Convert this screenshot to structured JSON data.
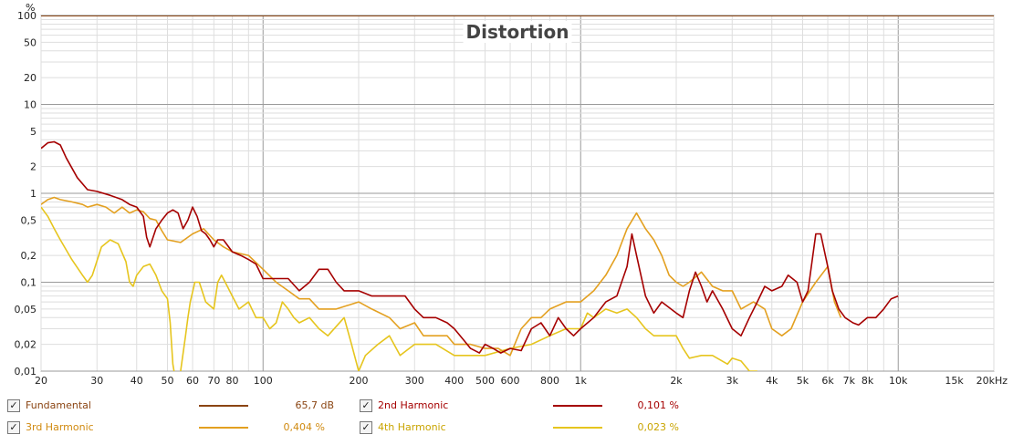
{
  "chart_data": {
    "type": "line",
    "title": "Distortion",
    "ylabel": "%",
    "xunit": "kHz",
    "xscale": "log",
    "yscale": "log",
    "xlim": [
      20,
      20000
    ],
    "ylim": [
      0.01,
      100
    ],
    "xticks": [
      {
        "v": 20,
        "t": "20"
      },
      {
        "v": 30,
        "t": "30"
      },
      {
        "v": 40,
        "t": "40"
      },
      {
        "v": 50,
        "t": "50"
      },
      {
        "v": 60,
        "t": "60"
      },
      {
        "v": 70,
        "t": "70"
      },
      {
        "v": 80,
        "t": "80"
      },
      {
        "v": 100,
        "t": "100"
      },
      {
        "v": 200,
        "t": "200"
      },
      {
        "v": 300,
        "t": "300"
      },
      {
        "v": 400,
        "t": "400"
      },
      {
        "v": 500,
        "t": "500"
      },
      {
        "v": 600,
        "t": "600"
      },
      {
        "v": 800,
        "t": "800"
      },
      {
        "v": 1000,
        "t": "1k"
      },
      {
        "v": 2000,
        "t": "2k"
      },
      {
        "v": 3000,
        "t": "3k"
      },
      {
        "v": 4000,
        "t": "4k"
      },
      {
        "v": 5000,
        "t": "5k"
      },
      {
        "v": 6000,
        "t": "6k"
      },
      {
        "v": 7000,
        "t": "7k"
      },
      {
        "v": 8000,
        "t": "8k"
      },
      {
        "v": 10000,
        "t": "10k"
      },
      {
        "v": 15000,
        "t": "15k"
      },
      {
        "v": 20000,
        "t": "20kHz"
      }
    ],
    "yticks": [
      {
        "v": 100,
        "t": "100"
      },
      {
        "v": 50,
        "t": "50"
      },
      {
        "v": 20,
        "t": "20"
      },
      {
        "v": 10,
        "t": "10"
      },
      {
        "v": 5,
        "t": "5"
      },
      {
        "v": 2,
        "t": "2"
      },
      {
        "v": 1,
        "t": "1"
      },
      {
        "v": 0.5,
        "t": "0,5"
      },
      {
        "v": 0.2,
        "t": "0,2"
      },
      {
        "v": 0.1,
        "t": "0,1"
      },
      {
        "v": 0.05,
        "t": "0,05"
      },
      {
        "v": 0.02,
        "t": "0,02"
      },
      {
        "v": 0.01,
        "t": "0,01"
      }
    ],
    "series": [
      {
        "name": "Fundamental",
        "color": "#8b4513",
        "value": "65,7 dB",
        "checked": true,
        "points": [
          [
            20,
            100
          ],
          [
            20000,
            100
          ]
        ]
      },
      {
        "name": "2nd Harmonic",
        "color": "#a50000",
        "value": "0,101 %",
        "checked": true,
        "points": [
          [
            20,
            3.2
          ],
          [
            21,
            3.7
          ],
          [
            22,
            3.8
          ],
          [
            23,
            3.5
          ],
          [
            24,
            2.5
          ],
          [
            26,
            1.5
          ],
          [
            28,
            1.1
          ],
          [
            30,
            1.05
          ],
          [
            33,
            0.95
          ],
          [
            36,
            0.85
          ],
          [
            38,
            0.75
          ],
          [
            40,
            0.7
          ],
          [
            42,
            0.55
          ],
          [
            43,
            0.32
          ],
          [
            44,
            0.25
          ],
          [
            46,
            0.4
          ],
          [
            48,
            0.5
          ],
          [
            50,
            0.6
          ],
          [
            52,
            0.65
          ],
          [
            54,
            0.6
          ],
          [
            56,
            0.4
          ],
          [
            58,
            0.5
          ],
          [
            60,
            0.7
          ],
          [
            62,
            0.55
          ],
          [
            64,
            0.38
          ],
          [
            66,
            0.35
          ],
          [
            68,
            0.3
          ],
          [
            70,
            0.25
          ],
          [
            72,
            0.3
          ],
          [
            75,
            0.3
          ],
          [
            80,
            0.22
          ],
          [
            85,
            0.2
          ],
          [
            90,
            0.18
          ],
          [
            95,
            0.16
          ],
          [
            100,
            0.11
          ],
          [
            110,
            0.11
          ],
          [
            120,
            0.11
          ],
          [
            130,
            0.08
          ],
          [
            140,
            0.1
          ],
          [
            150,
            0.14
          ],
          [
            160,
            0.14
          ],
          [
            170,
            0.1
          ],
          [
            180,
            0.08
          ],
          [
            200,
            0.08
          ],
          [
            220,
            0.07
          ],
          [
            250,
            0.07
          ],
          [
            280,
            0.07
          ],
          [
            300,
            0.05
          ],
          [
            320,
            0.04
          ],
          [
            350,
            0.04
          ],
          [
            380,
            0.035
          ],
          [
            400,
            0.03
          ],
          [
            430,
            0.022
          ],
          [
            450,
            0.018
          ],
          [
            480,
            0.016
          ],
          [
            500,
            0.02
          ],
          [
            530,
            0.018
          ],
          [
            560,
            0.016
          ],
          [
            600,
            0.018
          ],
          [
            650,
            0.017
          ],
          [
            700,
            0.03
          ],
          [
            750,
            0.035
          ],
          [
            800,
            0.025
          ],
          [
            850,
            0.04
          ],
          [
            900,
            0.03
          ],
          [
            950,
            0.025
          ],
          [
            1000,
            0.03
          ],
          [
            1100,
            0.04
          ],
          [
            1200,
            0.06
          ],
          [
            1300,
            0.07
          ],
          [
            1400,
            0.15
          ],
          [
            1450,
            0.35
          ],
          [
            1500,
            0.2
          ],
          [
            1600,
            0.07
          ],
          [
            1700,
            0.045
          ],
          [
            1800,
            0.06
          ],
          [
            2000,
            0.045
          ],
          [
            2100,
            0.04
          ],
          [
            2200,
            0.08
          ],
          [
            2300,
            0.13
          ],
          [
            2400,
            0.09
          ],
          [
            2500,
            0.06
          ],
          [
            2600,
            0.08
          ],
          [
            2800,
            0.05
          ],
          [
            3000,
            0.03
          ],
          [
            3200,
            0.025
          ],
          [
            3400,
            0.04
          ],
          [
            3600,
            0.06
          ],
          [
            3800,
            0.09
          ],
          [
            4000,
            0.08
          ],
          [
            4300,
            0.09
          ],
          [
            4500,
            0.12
          ],
          [
            4800,
            0.1
          ],
          [
            5000,
            0.06
          ],
          [
            5200,
            0.08
          ],
          [
            5500,
            0.35
          ],
          [
            5700,
            0.35
          ],
          [
            6000,
            0.15
          ],
          [
            6200,
            0.08
          ],
          [
            6500,
            0.05
          ],
          [
            6800,
            0.04
          ],
          [
            7200,
            0.035
          ],
          [
            7500,
            0.033
          ],
          [
            8000,
            0.04
          ],
          [
            8500,
            0.04
          ],
          [
            9000,
            0.05
          ],
          [
            9500,
            0.065
          ],
          [
            10000,
            0.07
          ]
        ]
      },
      {
        "name": "3rd Harmonic",
        "color": "#e3a020",
        "value": "0,404 %",
        "checked": true,
        "points": [
          [
            20,
            0.75
          ],
          [
            21,
            0.85
          ],
          [
            22,
            0.9
          ],
          [
            23,
            0.85
          ],
          [
            25,
            0.8
          ],
          [
            27,
            0.75
          ],
          [
            28,
            0.7
          ],
          [
            30,
            0.75
          ],
          [
            32,
            0.7
          ],
          [
            34,
            0.6
          ],
          [
            36,
            0.7
          ],
          [
            38,
            0.6
          ],
          [
            40,
            0.65
          ],
          [
            42,
            0.62
          ],
          [
            44,
            0.52
          ],
          [
            46,
            0.5
          ],
          [
            48,
            0.38
          ],
          [
            50,
            0.3
          ],
          [
            55,
            0.28
          ],
          [
            60,
            0.35
          ],
          [
            65,
            0.4
          ],
          [
            70,
            0.3
          ],
          [
            75,
            0.25
          ],
          [
            80,
            0.22
          ],
          [
            90,
            0.2
          ],
          [
            100,
            0.14
          ],
          [
            110,
            0.1
          ],
          [
            120,
            0.08
          ],
          [
            130,
            0.065
          ],
          [
            140,
            0.065
          ],
          [
            150,
            0.05
          ],
          [
            170,
            0.05
          ],
          [
            200,
            0.06
          ],
          [
            220,
            0.05
          ],
          [
            250,
            0.04
          ],
          [
            270,
            0.03
          ],
          [
            300,
            0.035
          ],
          [
            320,
            0.025
          ],
          [
            350,
            0.025
          ],
          [
            380,
            0.025
          ],
          [
            400,
            0.02
          ],
          [
            430,
            0.02
          ],
          [
            450,
            0.02
          ],
          [
            500,
            0.018
          ],
          [
            550,
            0.018
          ],
          [
            600,
            0.015
          ],
          [
            650,
            0.03
          ],
          [
            700,
            0.04
          ],
          [
            750,
            0.04
          ],
          [
            800,
            0.05
          ],
          [
            900,
            0.06
          ],
          [
            1000,
            0.06
          ],
          [
            1100,
            0.08
          ],
          [
            1200,
            0.12
          ],
          [
            1300,
            0.2
          ],
          [
            1400,
            0.4
          ],
          [
            1500,
            0.6
          ],
          [
            1600,
            0.4
          ],
          [
            1700,
            0.3
          ],
          [
            1800,
            0.2
          ],
          [
            1900,
            0.12
          ],
          [
            2000,
            0.1
          ],
          [
            2100,
            0.09
          ],
          [
            2200,
            0.1
          ],
          [
            2400,
            0.13
          ],
          [
            2600,
            0.09
          ],
          [
            2800,
            0.08
          ],
          [
            3000,
            0.08
          ],
          [
            3200,
            0.05
          ],
          [
            3500,
            0.06
          ],
          [
            3800,
            0.05
          ],
          [
            4000,
            0.03
          ],
          [
            4300,
            0.025
          ],
          [
            4600,
            0.03
          ],
          [
            5000,
            0.06
          ],
          [
            5500,
            0.1
          ],
          [
            6000,
            0.15
          ],
          [
            6300,
            0.06
          ],
          [
            6600,
            0.04
          ]
        ]
      },
      {
        "name": "4th Harmonic",
        "color": "#e6c51e",
        "value": "0,023 %",
        "checked": true,
        "points": [
          [
            20,
            0.7
          ],
          [
            21,
            0.55
          ],
          [
            22,
            0.4
          ],
          [
            23,
            0.3
          ],
          [
            25,
            0.18
          ],
          [
            27,
            0.12
          ],
          [
            28,
            0.1
          ],
          [
            29,
            0.12
          ],
          [
            31,
            0.25
          ],
          [
            33,
            0.3
          ],
          [
            35,
            0.27
          ],
          [
            37,
            0.17
          ],
          [
            38,
            0.1
          ],
          [
            39,
            0.09
          ],
          [
            40,
            0.12
          ],
          [
            42,
            0.15
          ],
          [
            44,
            0.16
          ],
          [
            46,
            0.12
          ],
          [
            48,
            0.08
          ],
          [
            50,
            0.065
          ],
          [
            51,
            0.035
          ],
          [
            52,
            0.012
          ],
          [
            53,
            0.008
          ],
          [
            55,
            0.01
          ],
          [
            57,
            0.025
          ],
          [
            58,
            0.04
          ],
          [
            59,
            0.06
          ],
          [
            61,
            0.1
          ],
          [
            63,
            0.1
          ],
          [
            66,
            0.06
          ],
          [
            70,
            0.05
          ],
          [
            72,
            0.1
          ],
          [
            74,
            0.12
          ],
          [
            76,
            0.1
          ],
          [
            80,
            0.07
          ],
          [
            84,
            0.05
          ],
          [
            90,
            0.06
          ],
          [
            95,
            0.04
          ],
          [
            100,
            0.04
          ],
          [
            105,
            0.03
          ],
          [
            110,
            0.035
          ],
          [
            115,
            0.06
          ],
          [
            120,
            0.05
          ],
          [
            125,
            0.04
          ],
          [
            130,
            0.035
          ],
          [
            140,
            0.04
          ],
          [
            150,
            0.03
          ],
          [
            160,
            0.025
          ],
          [
            180,
            0.04
          ],
          [
            190,
            0.02
          ],
          [
            200,
            0.01
          ],
          [
            210,
            0.015
          ],
          [
            230,
            0.02
          ],
          [
            250,
            0.025
          ],
          [
            270,
            0.015
          ],
          [
            300,
            0.02
          ],
          [
            350,
            0.02
          ],
          [
            400,
            0.015
          ],
          [
            500,
            0.015
          ],
          [
            600,
            0.018
          ],
          [
            700,
            0.02
          ],
          [
            800,
            0.025
          ],
          [
            900,
            0.03
          ],
          [
            1000,
            0.03
          ],
          [
            1050,
            0.045
          ],
          [
            1100,
            0.04
          ],
          [
            1200,
            0.05
          ],
          [
            1300,
            0.045
          ],
          [
            1400,
            0.05
          ],
          [
            1500,
            0.04
          ],
          [
            1600,
            0.03
          ],
          [
            1700,
            0.025
          ],
          [
            1900,
            0.025
          ],
          [
            2000,
            0.025
          ],
          [
            2100,
            0.018
          ],
          [
            2200,
            0.014
          ],
          [
            2400,
            0.015
          ],
          [
            2600,
            0.015
          ],
          [
            2900,
            0.012
          ],
          [
            3000,
            0.014
          ],
          [
            3200,
            0.013
          ],
          [
            3400,
            0.01
          ],
          [
            3600,
            0.01
          ]
        ]
      }
    ]
  }
}
